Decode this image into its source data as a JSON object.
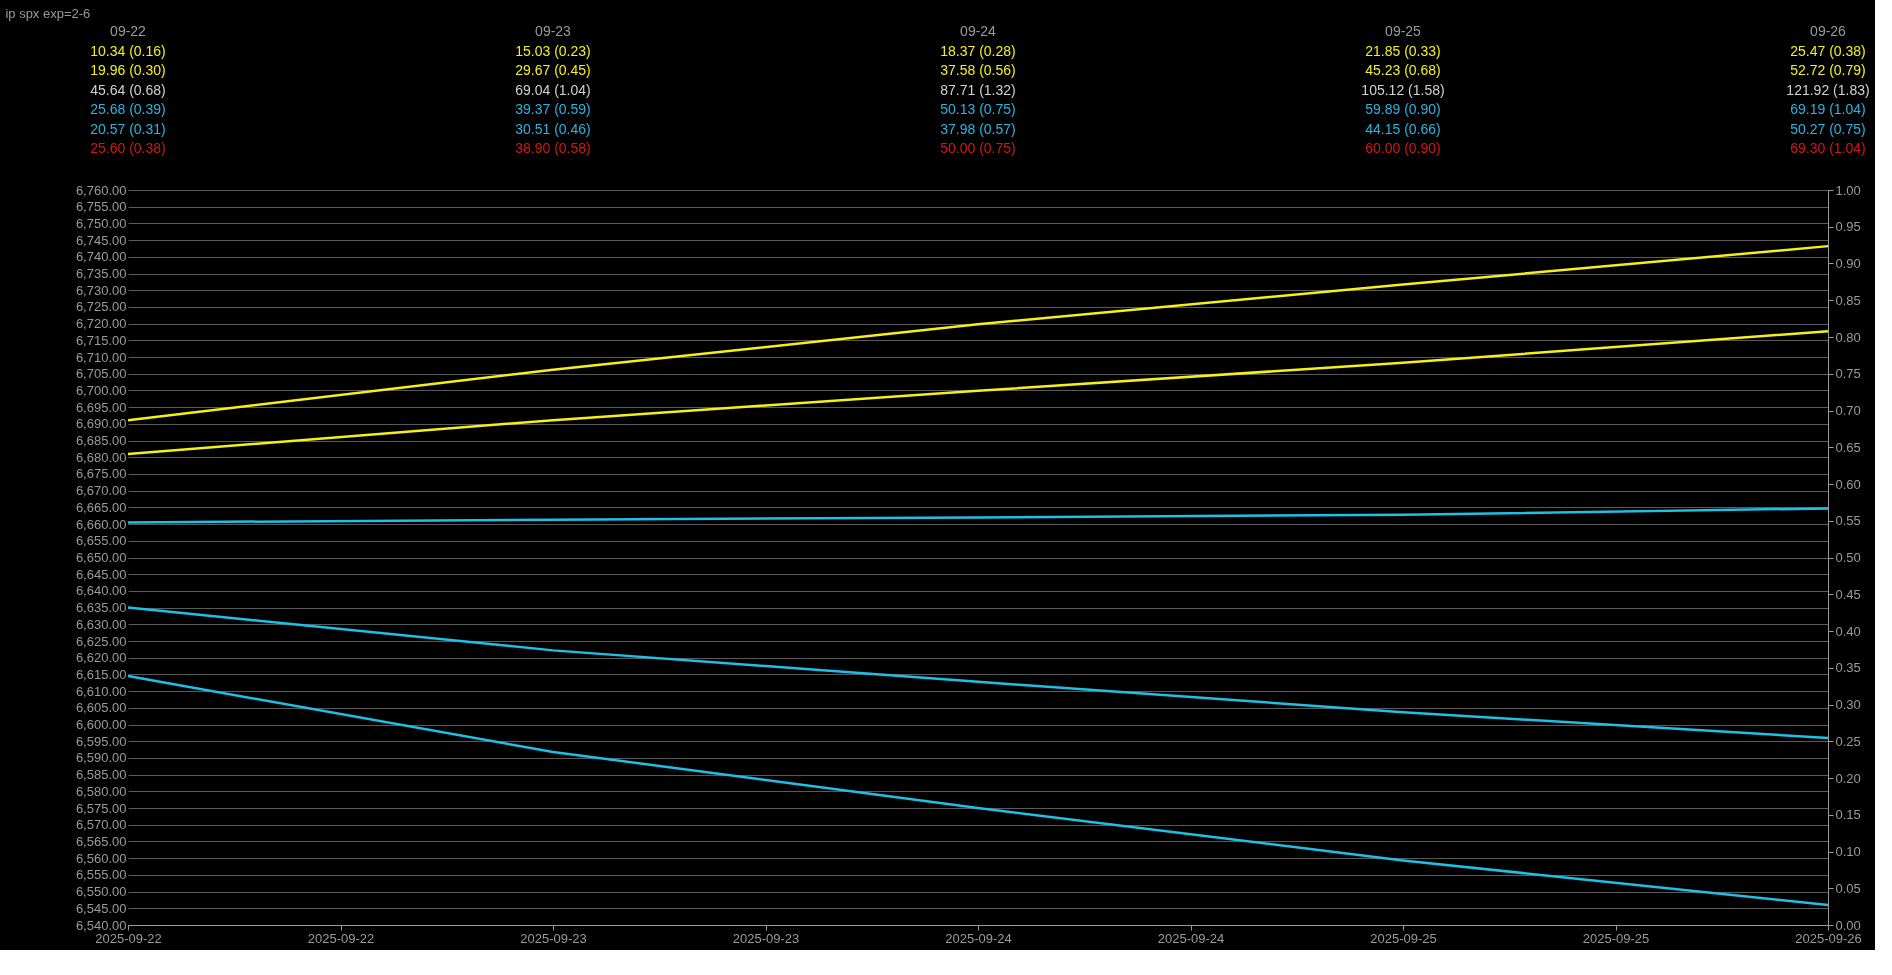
{
  "chart_data": {
    "type": "line",
    "title": "ip spx exp=2-6",
    "x": [
      "2025-09-22T00:00",
      "2025-09-23T00:00",
      "2025-09-24T00:00",
      "2025-09-25T00:00",
      "2025-09-26T00:00"
    ],
    "series": [
      {
        "color": "#f5ef1a",
        "values": [
          6691.1,
          6706.2,
          6719.8,
          6731.7,
          6743.2
        ]
      },
      {
        "color": "#f5ef1a",
        "values": [
          6681.0,
          6691.1,
          6699.9,
          6708.3,
          6717.7
        ]
      },
      {
        "color": "#1fc0e6",
        "values": [
          6660.5,
          6661.3,
          6662.0,
          6662.8,
          6664.7
        ]
      },
      {
        "color": "#1fc0e6",
        "values": [
          6635.0,
          6622.2,
          6612.8,
          6603.7,
          6596.0
        ]
      },
      {
        "color": "#1fc0e6",
        "values": [
          6614.5,
          6591.8,
          6575.0,
          6559.3,
          6546.0
        ]
      }
    ],
    "xlim": [
      "2025-09-22T00:00",
      "2025-09-26T00:00"
    ],
    "xticks": [
      {
        "value": "2025-09-22T00:00",
        "label": "2025-09-22"
      },
      {
        "value": "2025-09-22T12:00",
        "label": "2025-09-22"
      },
      {
        "value": "2025-09-23T00:00",
        "label": "2025-09-23"
      },
      {
        "value": "2025-09-23T12:00",
        "label": "2025-09-23"
      },
      {
        "value": "2025-09-24T00:00",
        "label": "2025-09-24"
      },
      {
        "value": "2025-09-24T12:00",
        "label": "2025-09-24"
      },
      {
        "value": "2025-09-25T00:00",
        "label": "2025-09-25"
      },
      {
        "value": "2025-09-25T12:00",
        "label": "2025-09-25"
      },
      {
        "value": "2025-09-26T00:00",
        "label": "2025-09-26"
      }
    ],
    "ylim": [
      6540,
      6760
    ],
    "yticks": [
      {
        "value": 6540,
        "label": "6,540.00"
      },
      {
        "value": 6545,
        "label": "6,545.00"
      },
      {
        "value": 6550,
        "label": "6,550.00"
      },
      {
        "value": 6555,
        "label": "6,555.00"
      },
      {
        "value": 6560,
        "label": "6,560.00"
      },
      {
        "value": 6565,
        "label": "6,565.00"
      },
      {
        "value": 6570,
        "label": "6,570.00"
      },
      {
        "value": 6575,
        "label": "6,575.00"
      },
      {
        "value": 6580,
        "label": "6,580.00"
      },
      {
        "value": 6585,
        "label": "6,585.00"
      },
      {
        "value": 6590,
        "label": "6,590.00"
      },
      {
        "value": 6595,
        "label": "6,595.00"
      },
      {
        "value": 6600,
        "label": "6,600.00"
      },
      {
        "value": 6605,
        "label": "6,605.00"
      },
      {
        "value": 6610,
        "label": "6,610.00"
      },
      {
        "value": 6615,
        "label": "6,615.00"
      },
      {
        "value": 6620,
        "label": "6,620.00"
      },
      {
        "value": 6625,
        "label": "6,625.00"
      },
      {
        "value": 6630,
        "label": "6,630.00"
      },
      {
        "value": 6635,
        "label": "6,635.00"
      },
      {
        "value": 6640,
        "label": "6,640.00"
      },
      {
        "value": 6645,
        "label": "6,645.00"
      },
      {
        "value": 6650,
        "label": "6,650.00"
      },
      {
        "value": 6655,
        "label": "6,655.00"
      },
      {
        "value": 6660,
        "label": "6,660.00"
      },
      {
        "value": 6665,
        "label": "6,665.00"
      },
      {
        "value": 6670,
        "label": "6,670.00"
      },
      {
        "value": 6675,
        "label": "6,675.00"
      },
      {
        "value": 6680,
        "label": "6,680.00"
      },
      {
        "value": 6685,
        "label": "6,685.00"
      },
      {
        "value": 6690,
        "label": "6,690.00"
      },
      {
        "value": 6695,
        "label": "6,695.00"
      },
      {
        "value": 6700,
        "label": "6,700.00"
      },
      {
        "value": 6705,
        "label": "6,705.00"
      },
      {
        "value": 6710,
        "label": "6,710.00"
      },
      {
        "value": 6715,
        "label": "6,715.00"
      },
      {
        "value": 6720,
        "label": "6,720.00"
      },
      {
        "value": 6725,
        "label": "6,725.00"
      },
      {
        "value": 6730,
        "label": "6,730.00"
      },
      {
        "value": 6735,
        "label": "6,735.00"
      },
      {
        "value": 6740,
        "label": "6,740.00"
      },
      {
        "value": 6745,
        "label": "6,745.00"
      },
      {
        "value": 6750,
        "label": "6,750.00"
      },
      {
        "value": 6755,
        "label": "6,755.00"
      },
      {
        "value": 6760,
        "label": "6,760.00"
      }
    ],
    "y2lim": [
      0,
      1
    ],
    "y2ticks": [
      {
        "value": 0,
        "label": "0.00"
      },
      {
        "value": 0.05,
        "label": "0.05"
      },
      {
        "value": 0.1,
        "label": "0.10"
      },
      {
        "value": 0.15,
        "label": "0.15"
      },
      {
        "value": 0.2,
        "label": "0.20"
      },
      {
        "value": 0.25,
        "label": "0.25"
      },
      {
        "value": 0.3,
        "label": "0.30"
      },
      {
        "value": 0.35,
        "label": "0.35"
      },
      {
        "value": 0.4,
        "label": "0.40"
      },
      {
        "value": 0.45,
        "label": "0.45"
      },
      {
        "value": 0.5,
        "label": "0.50"
      },
      {
        "value": 0.55,
        "label": "0.55"
      },
      {
        "value": 0.6,
        "label": "0.60"
      },
      {
        "value": 0.65,
        "label": "0.65"
      },
      {
        "value": 0.7,
        "label": "0.70"
      },
      {
        "value": 0.75,
        "label": "0.75"
      },
      {
        "value": 0.8,
        "label": "0.80"
      },
      {
        "value": 0.85,
        "label": "0.85"
      },
      {
        "value": 0.9,
        "label": "0.90"
      },
      {
        "value": 0.95,
        "label": "0.95"
      },
      {
        "value": 1,
        "label": "1.00"
      }
    ],
    "annotations": [
      "09-22",
      "10.34 (0.16)",
      "19.96 (0.30)",
      "45.64 (0.68)",
      "25.68 (0.39)",
      "20.57 (0.31)",
      "25.60 (0.38)",
      "09-23",
      "15.03 (0.23)",
      "29.67 (0.45)",
      "69.04 (1.04)",
      "39.37 (0.59)",
      "30.51 (0.46)",
      "38.90 (0.58)",
      "09-24",
      "18.37 (0.28)",
      "37.58 (0.56)",
      "87.71 (1.32)",
      "50.13 (0.75)",
      "37.98 (0.57)",
      "50.00 (0.75)",
      "09-25",
      "21.85 (0.33)",
      "45.23 (0.68)",
      "105.12 (1.58)",
      "59.89 (0.90)",
      "44.15 (0.66)",
      "60.00 (0.90)",
      "09-26",
      "25.47 (0.38)",
      "52.72 (0.79)",
      "121.92 (1.83)",
      "69.19 (1.04)",
      "50.27 (0.75)",
      "69.30 (1.04)"
    ],
    "grid": "y",
    "marker": "none",
    "line_style": "solid"
  }
}
